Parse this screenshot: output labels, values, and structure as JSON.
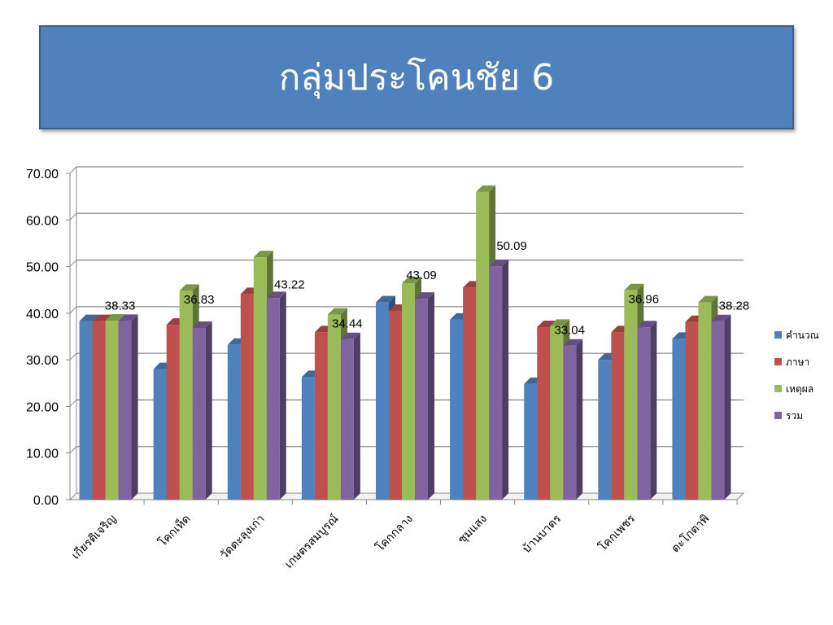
{
  "slide": {
    "title": "กลุ่มประโคนชัย 6"
  },
  "chart_data": {
    "type": "bar",
    "categories": [
      "เกียรติเจริญ",
      "โคกเห็ด",
      "วัดตะลุงเก่า",
      "เกษตรสมบูรณ์",
      "โคกกลาง",
      "ซุมแสง",
      "บ้านบาตร",
      "โคกเพชร",
      "ตะโกตาพิ"
    ],
    "series": [
      {
        "name": "คำนวณ",
        "color": "#4f81bd",
        "values": [
          38.3,
          28.0,
          33.2,
          26.3,
          42.3,
          38.6,
          24.8,
          30.0,
          34.5
        ]
      },
      {
        "name": "ภาษา",
        "color": "#c0504d",
        "values": [
          38.3,
          37.5,
          44.1,
          35.9,
          40.5,
          45.5,
          37.0,
          35.9,
          38.1
        ]
      },
      {
        "name": "เหตุผล",
        "color": "#9bbb59",
        "values": [
          38.4,
          44.8,
          52.0,
          39.7,
          46.4,
          66.0,
          37.3,
          44.9,
          42.3
        ]
      },
      {
        "name": "รวม",
        "color": "#8064a2",
        "values": [
          38.33,
          36.83,
          43.22,
          34.44,
          43.09,
          50.09,
          33.04,
          36.96,
          38.28
        ]
      }
    ],
    "data_labels": [
      "38.33",
      "36.83",
      "43.22",
      "34.44",
      "43.09",
      "50.09",
      "33.04",
      "36.96",
      "38.28"
    ],
    "y_ticks": [
      "0.00",
      "10.00",
      "20.00",
      "30.00",
      "40.00",
      "50.00",
      "60.00",
      "70.00"
    ],
    "ylim": [
      0,
      70
    ],
    "grid": true,
    "legend_position": "right"
  }
}
